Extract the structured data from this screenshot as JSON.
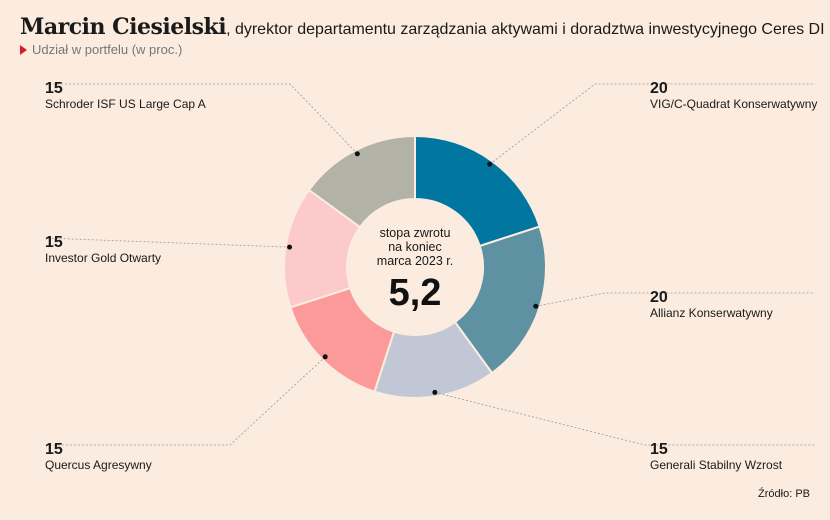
{
  "header": {
    "title_name": "Marcin Ciesielski",
    "title_rest": ", dyrektor departamentu zarządzania aktywami i doradztwa inwestycyjnego Ceres DI",
    "subtitle": "Udział w portfelu (w proc.)"
  },
  "center": {
    "label_lines": [
      "stopa zwrotu",
      "na koniec",
      "marca 2023 r."
    ],
    "value": "5,2"
  },
  "source": "Źródło: PB",
  "chart_data": {
    "type": "pie",
    "categories": [
      "VIG/C-Quadrat Konserwatywny",
      "Allianz Konserwatywny",
      "Generali Stabilny Wzrost",
      "Quercus Agresywny",
      "Investor Gold Otwarty",
      "Schroder ISF US Large Cap A"
    ],
    "values": [
      20,
      20,
      15,
      15,
      15,
      15
    ],
    "colors": [
      "#0076a0",
      "#5e91a2",
      "#c2c7d6",
      "#fc9a9a",
      "#fccacb",
      "#b3b2a7"
    ],
    "legend": "callouts"
  }
}
